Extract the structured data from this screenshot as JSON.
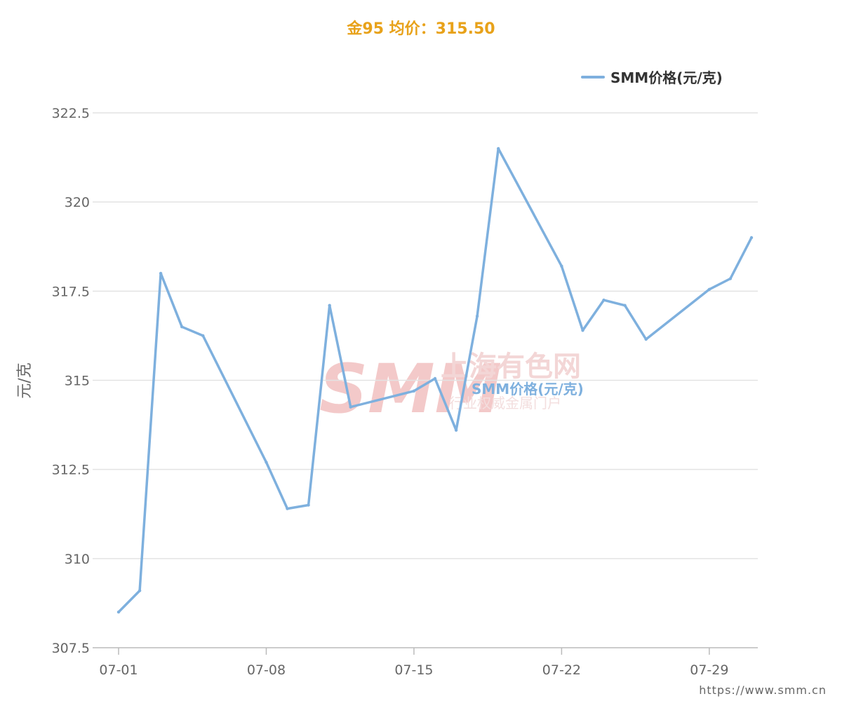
{
  "header": {
    "title": "金95 均价：315.50"
  },
  "watermark": {
    "logo": "SMM",
    "name_cn": "上海有色网",
    "slogan": "行业权威金属门户"
  },
  "footer": {
    "source": "https://www.smm.cn"
  },
  "colors": {
    "series": "#7eb0de",
    "title": "#e8a21a",
    "grid": "#e3e3e3",
    "axis": "#bbbbbb"
  },
  "chart_data": {
    "type": "line",
    "title": "金95 均价：315.50",
    "ylabel": "元/克",
    "ylim": [
      307.5,
      322.5
    ],
    "yticks": [
      307.5,
      310,
      312.5,
      315,
      317.5,
      320,
      322.5
    ],
    "ytick_labels": [
      "307.5",
      "310",
      "312.5",
      "315",
      "317.5",
      "320",
      "322.5"
    ],
    "x_ticks": [
      {
        "day": 1,
        "label": "07-01"
      },
      {
        "day": 8,
        "label": "07-08"
      },
      {
        "day": 15,
        "label": "07-15"
      },
      {
        "day": 22,
        "label": "07-22"
      },
      {
        "day": 29,
        "label": "07-29"
      }
    ],
    "legend": {
      "position": "top-right"
    },
    "grid": true,
    "series": [
      {
        "name": "SMM价格(元/克)",
        "inline_label": "SMM价格(元/克)",
        "points": [
          {
            "x": "07-01",
            "day": 1,
            "y": 308.5
          },
          {
            "x": "07-02",
            "day": 2,
            "y": 309.1
          },
          {
            "x": "07-03",
            "day": 3,
            "y": 318.0
          },
          {
            "x": "07-04",
            "day": 4,
            "y": 316.5
          },
          {
            "x": "07-05",
            "day": 5,
            "y": 316.25
          },
          {
            "x": "07-08",
            "day": 8,
            "y": 312.7
          },
          {
            "x": "07-09",
            "day": 9,
            "y": 311.4
          },
          {
            "x": "07-10",
            "day": 10,
            "y": 311.5
          },
          {
            "x": "07-11",
            "day": 11,
            "y": 317.1
          },
          {
            "x": "07-12",
            "day": 12,
            "y": 314.25
          },
          {
            "x": "07-15",
            "day": 15,
            "y": 314.7
          },
          {
            "x": "07-16",
            "day": 16,
            "y": 315.05
          },
          {
            "x": "07-17",
            "day": 17,
            "y": 313.6
          },
          {
            "x": "07-18",
            "day": 18,
            "y": 316.8
          },
          {
            "x": "07-19",
            "day": 19,
            "y": 321.5
          },
          {
            "x": "07-22",
            "day": 22,
            "y": 318.2
          },
          {
            "x": "07-23",
            "day": 23,
            "y": 316.4
          },
          {
            "x": "07-24",
            "day": 24,
            "y": 317.25
          },
          {
            "x": "07-25",
            "day": 25,
            "y": 317.1
          },
          {
            "x": "07-26",
            "day": 26,
            "y": 316.15
          },
          {
            "x": "07-29",
            "day": 29,
            "y": 317.55
          },
          {
            "x": "07-30",
            "day": 30,
            "y": 317.85
          },
          {
            "x": "07-31",
            "day": 31,
            "y": 319.0
          }
        ]
      }
    ]
  }
}
